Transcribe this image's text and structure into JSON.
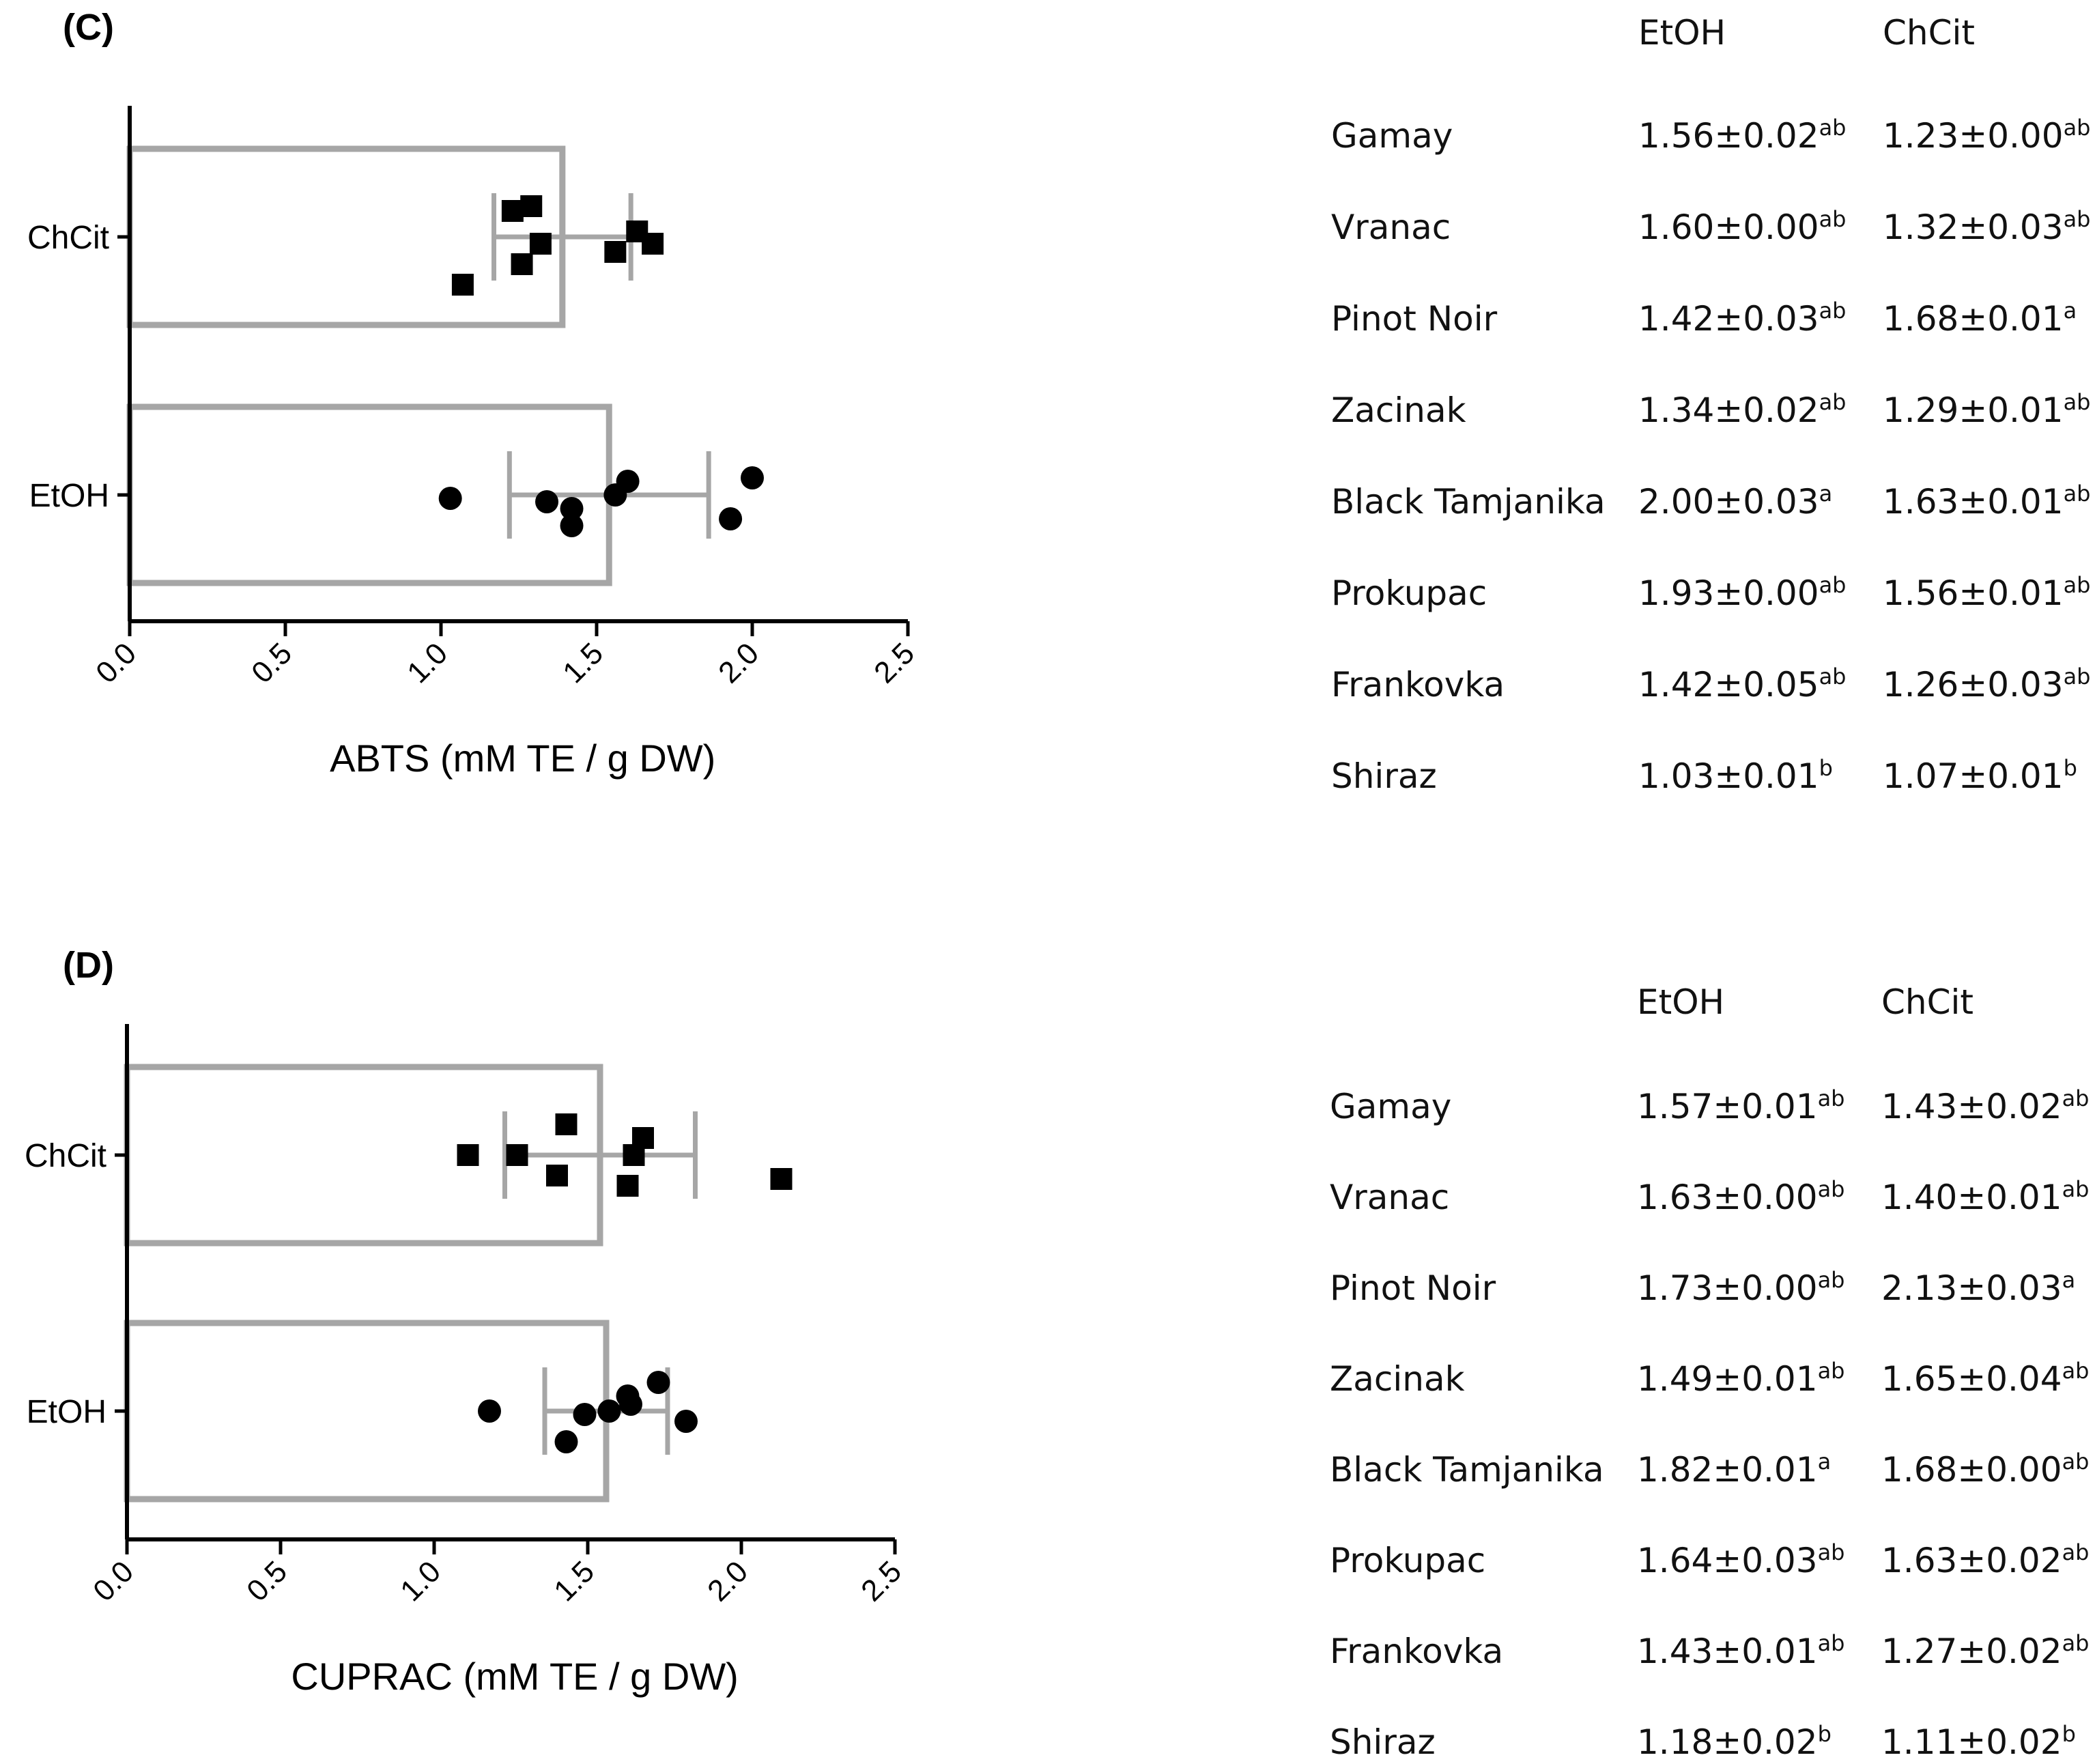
{
  "chart_data": [
    {
      "type": "bar",
      "orientation": "horizontal",
      "panel_label": "(C)",
      "xlabel": "ABTS (mM TE / g DW)",
      "xlim": [
        0,
        2.5
      ],
      "xticks": [
        "0.0",
        "0.5",
        "1.0",
        "1.5",
        "2.0",
        "2.5"
      ],
      "categories": [
        "ChCit",
        "EtOH"
      ],
      "series": [
        {
          "name": "ChCit",
          "marker": "square",
          "mean": 1.39,
          "sd": 0.22,
          "points": [
            1.23,
            1.32,
            1.68,
            1.29,
            1.63,
            1.56,
            1.26,
            1.07
          ]
        },
        {
          "name": "EtOH",
          "marker": "circle",
          "mean": 1.54,
          "sd": 0.32,
          "points": [
            1.56,
            1.6,
            1.42,
            1.34,
            2.0,
            1.93,
            1.42,
            1.03
          ]
        }
      ],
      "table": {
        "columns": [
          "EtOH",
          "ChCit"
        ],
        "rows": [
          {
            "cultivar": "Gamay",
            "etoh": "1.56±0.02",
            "etoh_sup": "ab",
            "chcit": "1.23±0.00",
            "chcit_sup": "ab"
          },
          {
            "cultivar": "Vranac",
            "etoh": "1.60±0.00",
            "etoh_sup": "ab",
            "chcit": "1.32±0.03",
            "chcit_sup": "ab"
          },
          {
            "cultivar": "Pinot Noir",
            "etoh": "1.42±0.03",
            "etoh_sup": "ab",
            "chcit": "1.68±0.01",
            "chcit_sup": "a"
          },
          {
            "cultivar": "Zacinak",
            "etoh": "1.34±0.02",
            "etoh_sup": "ab",
            "chcit": "1.29±0.01",
            "chcit_sup": "ab"
          },
          {
            "cultivar": "Black Tamjanika",
            "etoh": "2.00±0.03",
            "etoh_sup": "a",
            "chcit": "1.63±0.01",
            "chcit_sup": "ab"
          },
          {
            "cultivar": "Prokupac",
            "etoh": "1.93±0.00",
            "etoh_sup": "ab",
            "chcit": "1.56±0.01",
            "chcit_sup": "ab"
          },
          {
            "cultivar": "Frankovka",
            "etoh": "1.42±0.05",
            "etoh_sup": "ab",
            "chcit": "1.26±0.03",
            "chcit_sup": "ab"
          },
          {
            "cultivar": "Shiraz",
            "etoh": "1.03±0.01",
            "etoh_sup": "b",
            "chcit": "1.07±0.01",
            "chcit_sup": "b"
          }
        ]
      }
    },
    {
      "type": "bar",
      "orientation": "horizontal",
      "panel_label": "(D)",
      "xlabel": "CUPRAC (mM TE / g DW)",
      "xlim": [
        0,
        2.5
      ],
      "xticks": [
        "0.0",
        "0.5",
        "1.0",
        "1.5",
        "2.0",
        "2.5"
      ],
      "categories": [
        "ChCit",
        "EtOH"
      ],
      "series": [
        {
          "name": "ChCit",
          "marker": "square",
          "mean": 1.54,
          "sd": 0.31,
          "points": [
            1.43,
            1.4,
            2.13,
            1.65,
            1.68,
            1.63,
            1.27,
            1.11
          ]
        },
        {
          "name": "EtOH",
          "marker": "circle",
          "mean": 1.56,
          "sd": 0.2,
          "points": [
            1.57,
            1.63,
            1.73,
            1.49,
            1.82,
            1.64,
            1.43,
            1.18
          ]
        }
      ],
      "table": {
        "columns": [
          "EtOH",
          "ChCit"
        ],
        "rows": [
          {
            "cultivar": "Gamay",
            "etoh": "1.57±0.01",
            "etoh_sup": "ab",
            "chcit": "1.43±0.02",
            "chcit_sup": "ab"
          },
          {
            "cultivar": "Vranac",
            "etoh": "1.63±0.00",
            "etoh_sup": "ab",
            "chcit": "1.40±0.01",
            "chcit_sup": "ab"
          },
          {
            "cultivar": "Pinot Noir",
            "etoh": "1.73±0.00",
            "etoh_sup": "ab",
            "chcit": "2.13±0.03",
            "chcit_sup": "a"
          },
          {
            "cultivar": "Zacinak",
            "etoh": "1.49±0.01",
            "etoh_sup": "ab",
            "chcit": "1.65±0.04",
            "chcit_sup": "ab"
          },
          {
            "cultivar": "Black Tamjanika",
            "etoh": "1.82±0.01",
            "etoh_sup": "a",
            "chcit": "1.68±0.00",
            "chcit_sup": "ab"
          },
          {
            "cultivar": "Prokupac",
            "etoh": "1.64±0.03",
            "etoh_sup": "ab",
            "chcit": "1.63±0.02",
            "chcit_sup": "ab"
          },
          {
            "cultivar": "Frankovka",
            "etoh": "1.43±0.01",
            "etoh_sup": "ab",
            "chcit": "1.27±0.02",
            "chcit_sup": "ab"
          },
          {
            "cultivar": "Shiraz",
            "etoh": "1.18±0.02",
            "etoh_sup": "b",
            "chcit": "1.11±0.02",
            "chcit_sup": "b"
          }
        ]
      }
    }
  ],
  "style": {
    "bar_stroke": "#a6a6a6",
    "axis_color": "#000000",
    "marker_color": "#000000"
  }
}
